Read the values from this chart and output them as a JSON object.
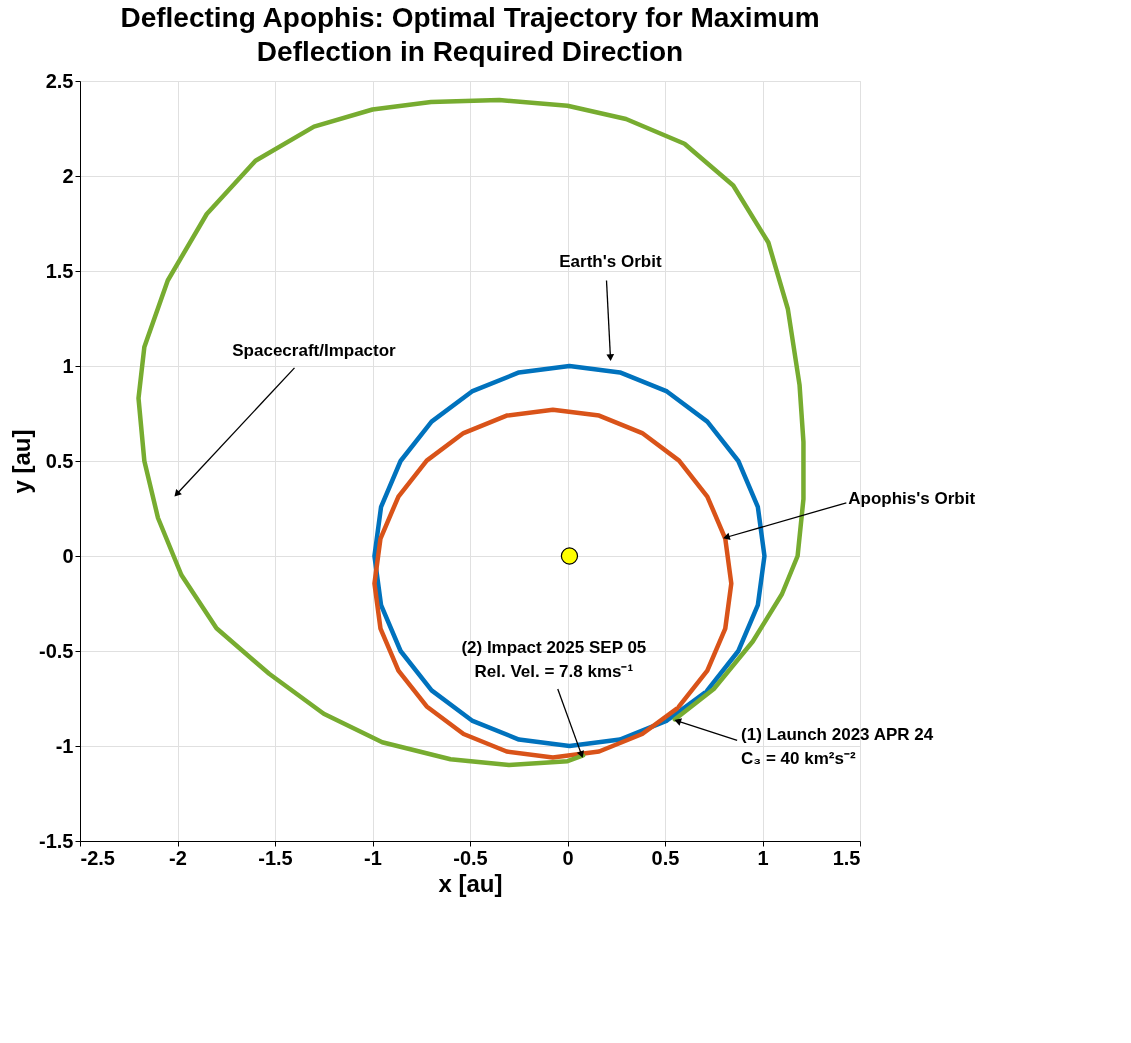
{
  "chart_data": {
    "type": "line",
    "title": "Deflecting Apophis: Optimal Trajectory for Maximum\nDeflection in Required Direction",
    "xlabel": "x [au]",
    "ylabel": "y [au]",
    "xlim": [
      -2.5,
      1.5
    ],
    "ylim": [
      -1.5,
      2.5
    ],
    "xticks": [
      -2.5,
      {
        "value": -2,
        "label": "-2"
      },
      -1.5,
      {
        "value": -1,
        "label": "-1"
      },
      -0.5,
      {
        "value": 0,
        "label": "0"
      },
      0.5,
      {
        "value": 1,
        "label": "1"
      },
      1.5
    ],
    "yticks": [
      -1.5,
      {
        "value": -1,
        "label": "-1"
      },
      -0.5,
      {
        "value": 0,
        "label": "0"
      },
      0.5,
      {
        "value": 1,
        "label": "1"
      },
      1.5,
      {
        "value": 2,
        "label": "2"
      },
      2.5
    ],
    "grid": true,
    "legend": false,
    "line_style": "solid",
    "marker": "none",
    "series": [
      {
        "color": "#0072bd",
        "x": [
          0.717,
          0.876,
          0.976,
          1.01,
          0.976,
          0.876,
          0.717,
          0.51,
          0.269,
          0.01,
          -0.249,
          -0.49,
          -0.697,
          -0.856,
          -0.956,
          -0.99,
          -0.956,
          -0.856,
          -0.697,
          -0.49,
          -0.249,
          0.01,
          0.269,
          0.51,
          0.705
        ],
        "values": [
          -0.707,
          -0.5,
          -0.259,
          0.0,
          0.259,
          0.5,
          0.707,
          0.866,
          0.966,
          1.0,
          0.966,
          0.866,
          0.707,
          0.5,
          0.259,
          0.0,
          -0.259,
          -0.5,
          -0.707,
          -0.866,
          -0.966,
          -1.0,
          -0.966,
          -0.866,
          -0.719
        ]
      },
      {
        "color": "#d95319",
        "x": [
          0.572,
          0.717,
          0.809,
          0.84,
          0.809,
          0.717,
          0.572,
          0.383,
          0.162,
          -0.075,
          -0.312,
          -0.533,
          -0.722,
          -0.867,
          -0.959,
          -0.99,
          -0.959,
          -0.867,
          -0.722,
          -0.533,
          -0.312,
          -0.075,
          0.162,
          0.383,
          0.561
        ],
        "values": [
          -0.792,
          -0.603,
          -0.382,
          -0.145,
          0.092,
          0.313,
          0.502,
          0.647,
          0.739,
          0.77,
          0.739,
          0.647,
          0.502,
          0.313,
          0.092,
          -0.145,
          -0.382,
          -0.603,
          -0.792,
          -0.937,
          -1.029,
          -1.06,
          -1.029,
          -0.937,
          -0.803
        ]
      },
      {
        "color": "#77ac30",
        "x": [
          0.55,
          0.75,
          0.95,
          1.1,
          1.18,
          1.21,
          1.21,
          1.19,
          1.13,
          1.03,
          0.85,
          0.6,
          0.3,
          0.0,
          -0.35,
          -0.7,
          -1.0,
          -1.3,
          -1.6,
          -1.85,
          -2.05,
          -2.17,
          -2.2,
          -2.17,
          -2.1,
          -1.98,
          -1.8,
          -1.53,
          -1.25,
          -0.95,
          -0.6,
          -0.3,
          0.0,
          0.08
        ],
        "values": [
          -0.86,
          -0.7,
          -0.45,
          -0.2,
          0.0,
          0.3,
          0.6,
          0.9,
          1.3,
          1.65,
          1.95,
          2.17,
          2.3,
          2.37,
          2.4,
          2.39,
          2.35,
          2.26,
          2.08,
          1.8,
          1.45,
          1.1,
          0.83,
          0.5,
          0.2,
          -0.1,
          -0.38,
          -0.62,
          -0.83,
          -0.98,
          -1.07,
          -1.1,
          -1.08,
          -1.05
        ]
      },
      {
        "type": "scatter",
        "marker": "circle",
        "color": "#ffff00",
        "x": [
          0.01
        ],
        "values": [
          0.0
        ]
      }
    ],
    "annotations": [
      {
        "text": "Earth's Orbit",
        "x": 0.22,
        "y": 1.05
      },
      {
        "text": "Spacecraft/Impactor",
        "x": -2.0,
        "y": 0.33
      },
      {
        "text": "Apophis's Orbit",
        "x": 0.82,
        "y": 0.1
      },
      {
        "text": "(2) Impact 2025 SEP 05\nRel. Vel. = 7.8 kms⁻¹",
        "x": 0.07,
        "y": -1.04
      },
      {
        "text": "(1) Launch 2023 APR 24\nC₃ = 40 km²s⁻²",
        "x": 0.57,
        "y": -0.87
      }
    ]
  }
}
